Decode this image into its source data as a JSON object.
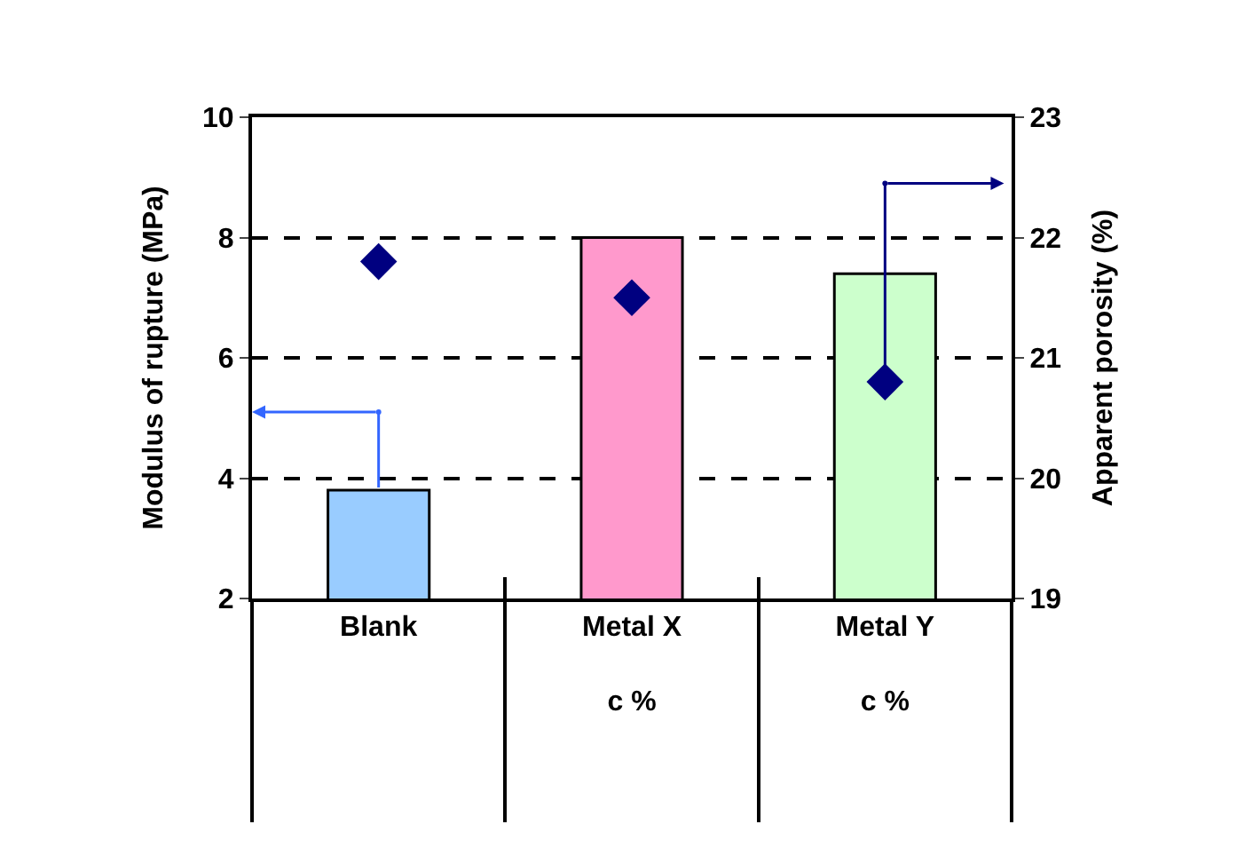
{
  "chart_data": {
    "type": "bar",
    "ylabel": "Modulus of rupture (MPa)",
    "y2label": "Apparent porosity (%)",
    "categories": [
      "Blank",
      "Metal X\nc %",
      "Metal Y\nc %"
    ],
    "series": [
      {
        "colors": [
          "#99ccff",
          "#ff99cc",
          "#ccffcc"
        ],
        "values": [
          3.8,
          8.0,
          7.4
        ]
      },
      {
        "type": "scatter",
        "axis": "y2",
        "color": "#000080",
        "marker": "diamond",
        "values": [
          21.8,
          21.5,
          20.8
        ]
      }
    ],
    "ylim": [
      2,
      10
    ],
    "yticks": [
      2,
      4,
      6,
      8,
      10
    ],
    "y2lim": [
      19,
      23
    ],
    "y2ticks": [
      19,
      20,
      21,
      22,
      23
    ],
    "grid": "y"
  }
}
